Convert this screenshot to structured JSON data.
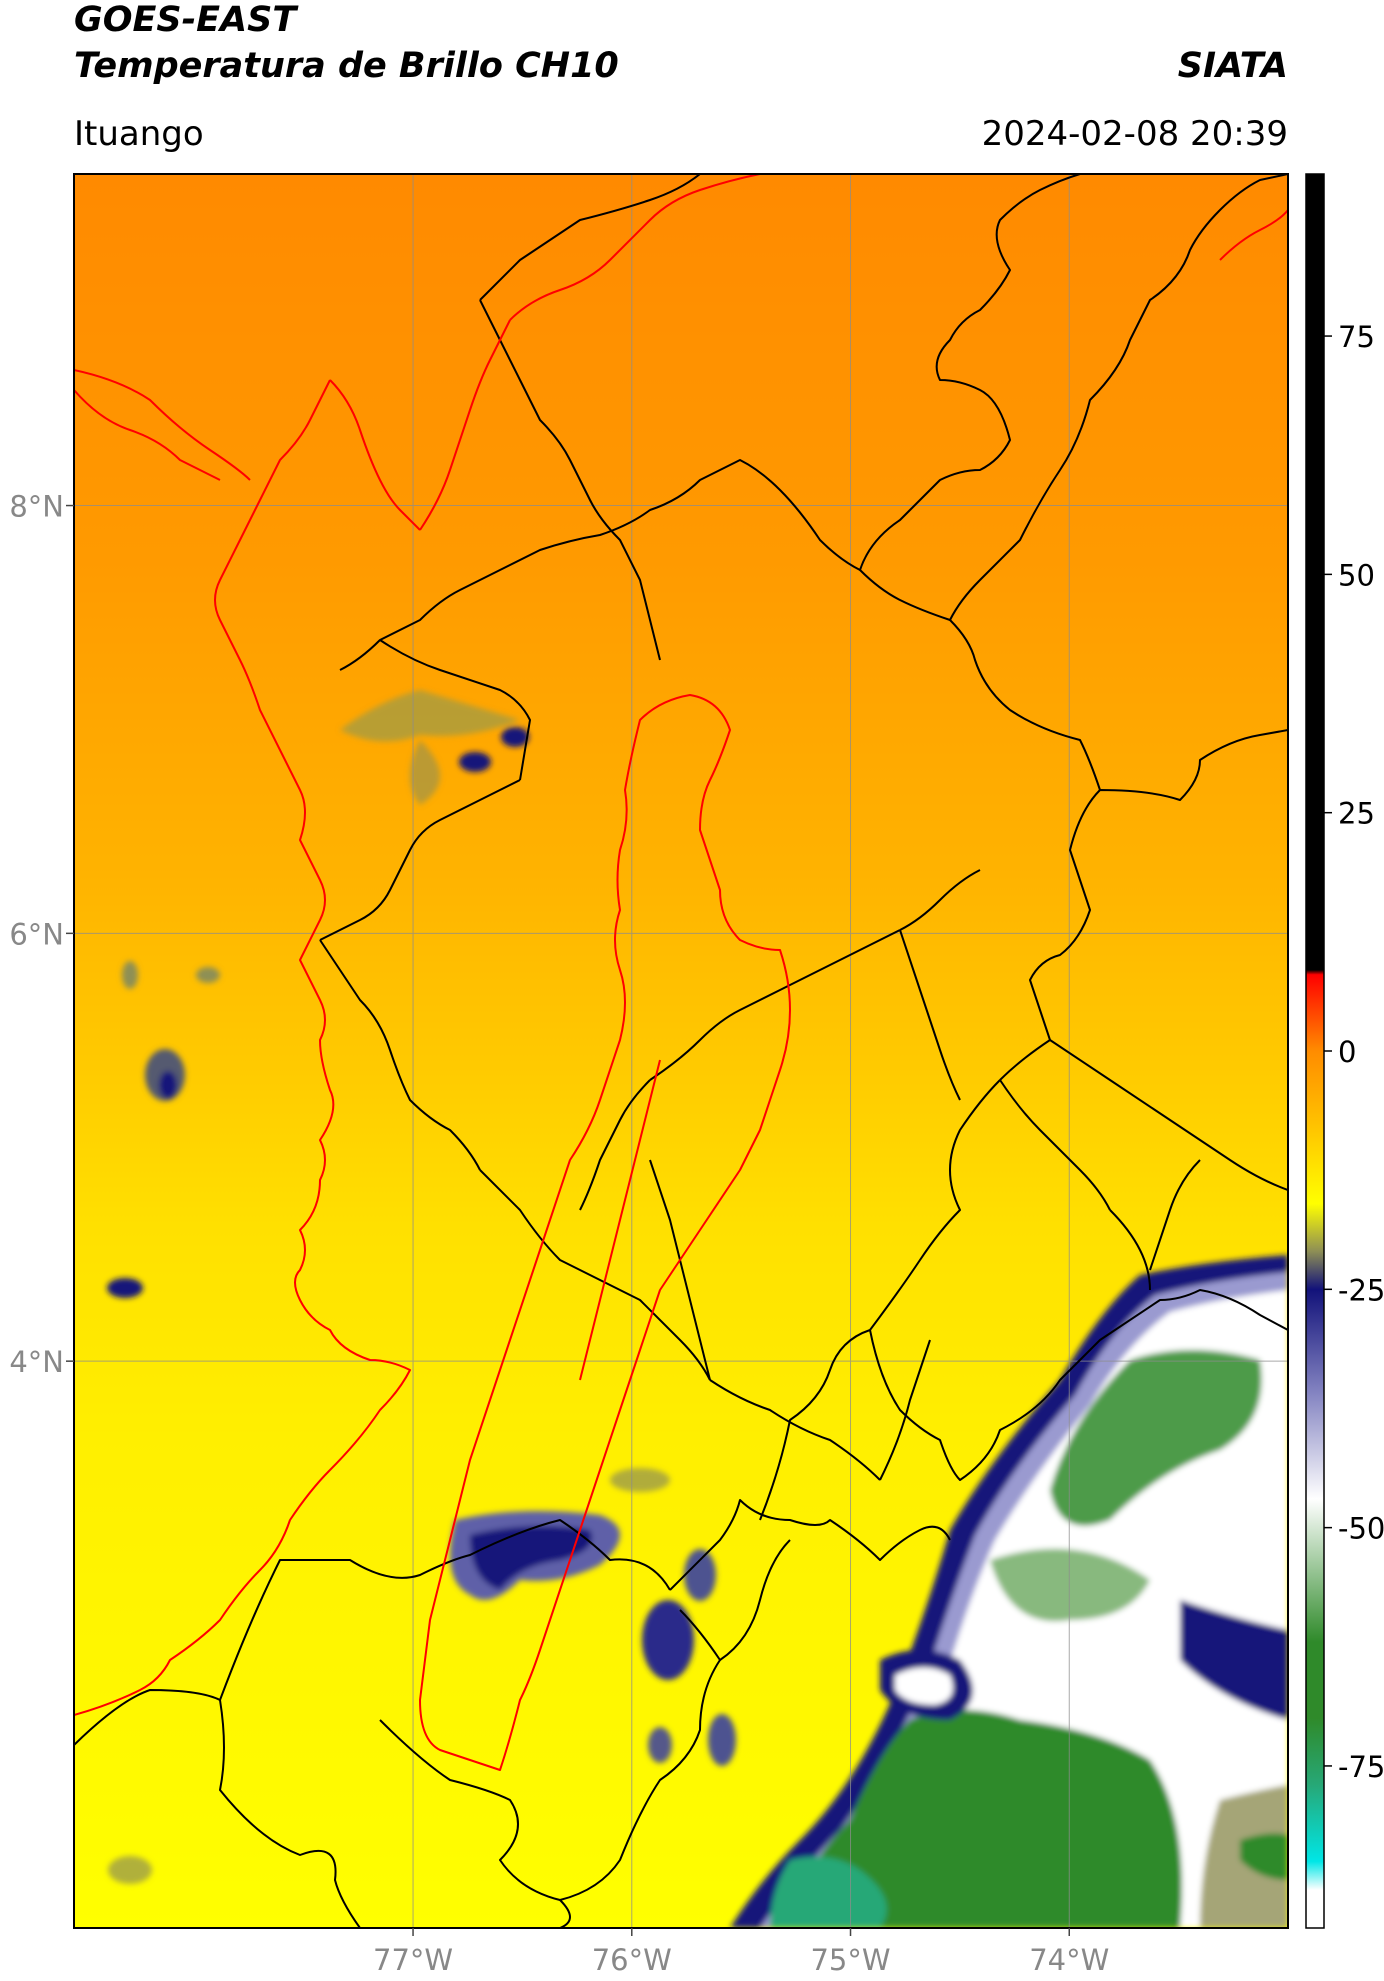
{
  "header": {
    "satellite": "GOES-EAST",
    "product": "Temperatura de Brillo CH10",
    "brand": "SIATA",
    "location": "Ituango",
    "datetime": "2024-02-08 20:39"
  },
  "map": {
    "lon_range": [
      -78.55,
      -73.0
    ],
    "lat_range": [
      1.35,
      9.55
    ],
    "lat_ticks": [
      {
        "value": 8,
        "label": "8°N"
      },
      {
        "value": 6,
        "label": "6°N"
      },
      {
        "value": 4,
        "label": "4°N"
      }
    ],
    "lon_ticks": [
      {
        "value": -77,
        "label": "77°W"
      },
      {
        "value": -76,
        "label": "76°W"
      },
      {
        "value": -75,
        "label": "75°W"
      },
      {
        "value": -74,
        "label": "74°W"
      }
    ],
    "gridlines": true
  },
  "colorbar": {
    "range": [
      -92,
      92
    ],
    "ticks": [
      {
        "value": 75,
        "label": "75"
      },
      {
        "value": 50,
        "label": "50"
      },
      {
        "value": 25,
        "label": "25"
      },
      {
        "value": 0,
        "label": "0"
      },
      {
        "value": -25,
        "label": "-25"
      },
      {
        "value": -50,
        "label": "-50"
      },
      {
        "value": -75,
        "label": "-75"
      }
    ],
    "stops": [
      {
        "value": 92,
        "color": "#000000"
      },
      {
        "value": 8.5,
        "color": "#000000"
      },
      {
        "value": 8,
        "color": "#ff0000"
      },
      {
        "value": 0,
        "color": "#ff8c00"
      },
      {
        "value": -8,
        "color": "#ffc400"
      },
      {
        "value": -16,
        "color": "#ffff00"
      },
      {
        "value": -21,
        "color": "#8e8f55"
      },
      {
        "value": -25,
        "color": "#12127a"
      },
      {
        "value": -36,
        "color": "#8585c2"
      },
      {
        "value": -47,
        "color": "#ffffff"
      },
      {
        "value": -62,
        "color": "#2f8a2a"
      },
      {
        "value": -70,
        "color": "#2f8a2a"
      },
      {
        "value": -77,
        "color": "#27a877"
      },
      {
        "value": -85,
        "color": "#00e6e6"
      },
      {
        "value": -88,
        "color": "#ffffff"
      },
      {
        "value": -92,
        "color": "#ffffff"
      }
    ]
  },
  "colors": {
    "warm_top": "#ff8c00",
    "warm_mid": "#ffc400",
    "warm_low": "#ffff00",
    "cold_core": "#2f8a2a",
    "cloud_white": "#ffffff",
    "cloud_edge": "#12127a",
    "watershed_outline": "#ff0000",
    "admin_borders": "#000000"
  }
}
